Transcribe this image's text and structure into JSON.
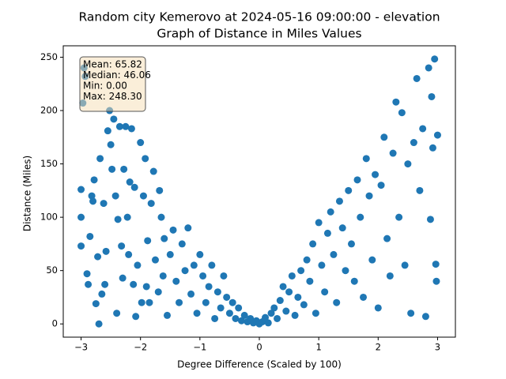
{
  "chart_data": {
    "type": "scatter",
    "title": "Random city Kemerovo at 2024-05-16 09:00:00  - elevation",
    "subtitle": "Graph of Distance in Miles Values",
    "x_label": "Degree Difference (Scaled by 100)",
    "y_label": "Distance (Miles)",
    "color": "#1f77b4",
    "xlim": [
      -3.3,
      3.3
    ],
    "ylim": [
      -12.4,
      260.7
    ],
    "xticks": [
      {
        "value": -3,
        "label": "−3"
      },
      {
        "value": -2,
        "label": "−2"
      },
      {
        "value": -1,
        "label": "−1"
      },
      0,
      1,
      2,
      3
    ],
    "yticks": [
      0,
      50,
      100,
      150,
      200,
      250
    ],
    "stats": [
      "Mean: 65.82",
      "Median: 46.06",
      "Min: 0.00",
      "Max: 248.30"
    ],
    "x": [
      -3,
      -3,
      -3,
      -2.97,
      -2.95,
      -2.93,
      -2.9,
      -2.88,
      -2.85,
      -2.82,
      -2.8,
      -2.78,
      -2.75,
      -2.72,
      -2.7,
      -2.68,
      -2.65,
      -2.62,
      -2.6,
      -2.58,
      -2.55,
      -2.52,
      -2.5,
      -2.48,
      -2.45,
      -2.42,
      -2.4,
      -2.38,
      -2.35,
      -2.32,
      -2.3,
      -2.28,
      -2.25,
      -2.22,
      -2.2,
      -2.18,
      -2.15,
      -2.12,
      -2.1,
      -2.08,
      -2.05,
      -2,
      -1.98,
      -1.95,
      -1.92,
      -1.9,
      -1.88,
      -1.85,
      -1.82,
      -1.78,
      -1.75,
      -1.7,
      -1.68,
      -1.65,
      -1.62,
      -1.6,
      -1.55,
      -1.5,
      -1.45,
      -1.4,
      -1.35,
      -1.3,
      -1.25,
      -1.2,
      -1.15,
      -1.1,
      -1.05,
      -1,
      -0.95,
      -0.9,
      -0.85,
      -0.8,
      -0.75,
      -0.7,
      -0.65,
      -0.6,
      -0.55,
      -0.5,
      -0.45,
      -0.4,
      -0.35,
      -0.3,
      -0.25,
      -0.2,
      -0.15,
      -0.1,
      -0.05,
      0,
      0.05,
      0.1,
      0.15,
      0.2,
      0.25,
      0.3,
      0.35,
      0.4,
      0.45,
      0.5,
      0.55,
      0.6,
      0.65,
      0.7,
      0.75,
      0.8,
      0.85,
      0.9,
      0.95,
      1,
      1.05,
      1.1,
      1.15,
      1.2,
      1.25,
      1.3,
      1.35,
      1.4,
      1.45,
      1.5,
      1.55,
      1.6,
      1.65,
      1.7,
      1.75,
      1.8,
      1.85,
      1.9,
      1.95,
      2,
      2.05,
      2.1,
      2.15,
      2.2,
      2.25,
      2.3,
      2.35,
      2.4,
      2.45,
      2.5,
      2.55,
      2.6,
      2.65,
      2.7,
      2.75,
      2.8,
      2.85,
      2.88,
      2.9,
      2.92,
      2.95,
      2.97,
      3,
      2.98
    ],
    "values": [
      126,
      100,
      73,
      207,
      240,
      232,
      47,
      37,
      82,
      120,
      115,
      135,
      19,
      63,
      0,
      155,
      28,
      113,
      37,
      68,
      181,
      200,
      168,
      145,
      192,
      120,
      10,
      98,
      185,
      73,
      43,
      145,
      185,
      100,
      65,
      133,
      183,
      37,
      128,
      7,
      55,
      170,
      20,
      120,
      155,
      35,
      78,
      20,
      113,
      143,
      60,
      30,
      125,
      100,
      45,
      80,
      8,
      65,
      88,
      40,
      20,
      75,
      50,
      90,
      28,
      55,
      10,
      65,
      45,
      20,
      35,
      55,
      5,
      30,
      15,
      45,
      25,
      10,
      20,
      5,
      15,
      3,
      8,
      2,
      5,
      1,
      3,
      0,
      2,
      6,
      1,
      10,
      15,
      5,
      22,
      35,
      12,
      30,
      45,
      8,
      25,
      50,
      18,
      60,
      40,
      75,
      10,
      95,
      55,
      30,
      85,
      105,
      65,
      20,
      115,
      90,
      50,
      125,
      75,
      40,
      135,
      100,
      25,
      155,
      120,
      60,
      140,
      15,
      130,
      175,
      80,
      45,
      160,
      208,
      100,
      198,
      55,
      150,
      10,
      170,
      230,
      125,
      183,
      7,
      240,
      98,
      213,
      165,
      248.3,
      56,
      177,
      40
    ]
  }
}
